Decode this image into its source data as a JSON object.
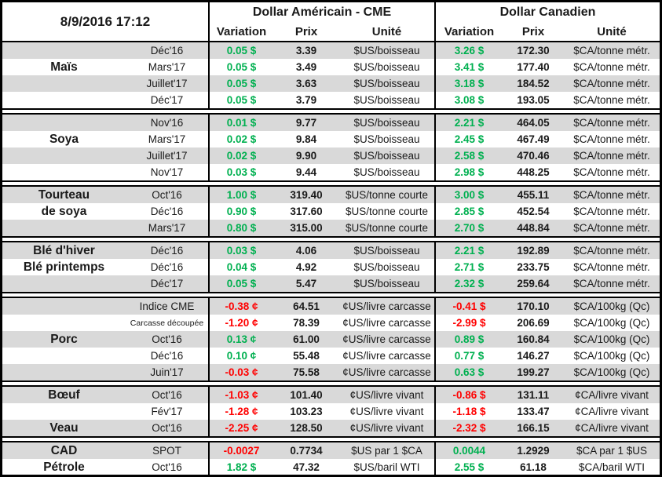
{
  "window": {
    "timestamp": "8/9/2016 17:12"
  },
  "columns": {
    "group_us": "Dollar Américain - CME",
    "group_ca": "Dollar Canadien",
    "variation": "Variation",
    "prix": "Prix",
    "unite": "Unité"
  },
  "colors": {
    "positive": "#00b050",
    "negative": "#ff0000",
    "stripe": "#d9d9d9",
    "border": "#000000"
  },
  "sections": [
    {
      "name": "mais",
      "labels": [
        {
          "text": "Maïs",
          "row": 1
        }
      ],
      "rows": [
        {
          "contract": "Déc'16",
          "us": {
            "var": "0.05 $",
            "dir": "pos",
            "prix": "3.39",
            "unit": "$US/boisseau"
          },
          "ca": {
            "var": "3.26 $",
            "dir": "pos",
            "prix": "172.30",
            "unit": "$CA/tonne métr."
          }
        },
        {
          "contract": "Mars'17",
          "us": {
            "var": "0.05 $",
            "dir": "pos",
            "prix": "3.49",
            "unit": "$US/boisseau"
          },
          "ca": {
            "var": "3.41 $",
            "dir": "pos",
            "prix": "177.40",
            "unit": "$CA/tonne métr."
          }
        },
        {
          "contract": "Juillet'17",
          "us": {
            "var": "0.05 $",
            "dir": "pos",
            "prix": "3.63",
            "unit": "$US/boisseau"
          },
          "ca": {
            "var": "3.18 $",
            "dir": "pos",
            "prix": "184.52",
            "unit": "$CA/tonne métr."
          }
        },
        {
          "contract": "Déc'17",
          "us": {
            "var": "0.05 $",
            "dir": "pos",
            "prix": "3.79",
            "unit": "$US/boisseau"
          },
          "ca": {
            "var": "3.08 $",
            "dir": "pos",
            "prix": "193.05",
            "unit": "$CA/tonne métr."
          }
        }
      ]
    },
    {
      "name": "soya",
      "labels": [
        {
          "text": "Soya",
          "row": 1
        }
      ],
      "rows": [
        {
          "contract": "Nov'16",
          "us": {
            "var": "0.01 $",
            "dir": "pos",
            "prix": "9.77",
            "unit": "$US/boisseau"
          },
          "ca": {
            "var": "2.21 $",
            "dir": "pos",
            "prix": "464.05",
            "unit": "$CA/tonne métr."
          }
        },
        {
          "contract": "Mars'17",
          "us": {
            "var": "0.02 $",
            "dir": "pos",
            "prix": "9.84",
            "unit": "$US/boisseau"
          },
          "ca": {
            "var": "2.45 $",
            "dir": "pos",
            "prix": "467.49",
            "unit": "$CA/tonne métr."
          }
        },
        {
          "contract": "Juillet'17",
          "us": {
            "var": "0.02 $",
            "dir": "pos",
            "prix": "9.90",
            "unit": "$US/boisseau"
          },
          "ca": {
            "var": "2.58 $",
            "dir": "pos",
            "prix": "470.46",
            "unit": "$CA/tonne métr."
          }
        },
        {
          "contract": "Nov'17",
          "us": {
            "var": "0.03 $",
            "dir": "pos",
            "prix": "9.44",
            "unit": "$US/boisseau"
          },
          "ca": {
            "var": "2.98 $",
            "dir": "pos",
            "prix": "448.25",
            "unit": "$CA/tonne métr."
          }
        }
      ]
    },
    {
      "name": "tourteau-de-soya",
      "labels": [
        {
          "text": "Tourteau",
          "row": 0
        },
        {
          "text": "de soya",
          "row": 1
        }
      ],
      "rows": [
        {
          "contract": "Oct'16",
          "us": {
            "var": "1.00 $",
            "dir": "pos",
            "prix": "319.40",
            "unit": "$US/tonne courte"
          },
          "ca": {
            "var": "3.00 $",
            "dir": "pos",
            "prix": "455.11",
            "unit": "$CA/tonne métr."
          }
        },
        {
          "contract": "Déc'16",
          "us": {
            "var": "0.90 $",
            "dir": "pos",
            "prix": "317.60",
            "unit": "$US/tonne courte"
          },
          "ca": {
            "var": "2.85 $",
            "dir": "pos",
            "prix": "452.54",
            "unit": "$CA/tonne métr."
          }
        },
        {
          "contract": "Mars'17",
          "us": {
            "var": "0.80 $",
            "dir": "pos",
            "prix": "315.00",
            "unit": "$US/tonne courte"
          },
          "ca": {
            "var": "2.70 $",
            "dir": "pos",
            "prix": "448.84",
            "unit": "$CA/tonne métr."
          }
        }
      ]
    },
    {
      "name": "ble",
      "labels": [
        {
          "text": "Blé d'hiver",
          "row": 0
        },
        {
          "text": "Blé printemps",
          "row": 1
        }
      ],
      "rows": [
        {
          "contract": "Déc'16",
          "us": {
            "var": "0.03 $",
            "dir": "pos",
            "prix": "4.06",
            "unit": "$US/boisseau"
          },
          "ca": {
            "var": "2.21 $",
            "dir": "pos",
            "prix": "192.89",
            "unit": "$CA/tonne métr."
          }
        },
        {
          "contract": "Déc'16",
          "us": {
            "var": "0.04 $",
            "dir": "pos",
            "prix": "4.92",
            "unit": "$US/boisseau"
          },
          "ca": {
            "var": "2.71 $",
            "dir": "pos",
            "prix": "233.75",
            "unit": "$CA/tonne métr."
          }
        },
        {
          "contract": "Déc'17",
          "us": {
            "var": "0.05 $",
            "dir": "pos",
            "prix": "5.47",
            "unit": "$US/boisseau"
          },
          "ca": {
            "var": "2.32 $",
            "dir": "pos",
            "prix": "259.64",
            "unit": "$CA/tonne métr."
          }
        }
      ]
    },
    {
      "name": "porc",
      "labels": [
        {
          "text": "Porc",
          "row": 2
        }
      ],
      "rows": [
        {
          "contract": "Indice CME",
          "us": {
            "var": "-0.38 ¢",
            "dir": "neg",
            "prix": "64.51",
            "unit": "¢US/livre carcasse"
          },
          "ca": {
            "var": "-0.41 $",
            "dir": "neg",
            "prix": "170.10",
            "unit": "$CA/100kg (Qc)"
          }
        },
        {
          "contract": "Carcasse découpée",
          "small": true,
          "us": {
            "var": "-1.20 ¢",
            "dir": "neg",
            "prix": "78.39",
            "unit": "¢US/livre carcasse"
          },
          "ca": {
            "var": "-2.99 $",
            "dir": "neg",
            "prix": "206.69",
            "unit": "$CA/100kg (Qc)"
          }
        },
        {
          "contract": "Oct'16",
          "us": {
            "var": "0.13 ¢",
            "dir": "pos",
            "prix": "61.00",
            "unit": "¢US/livre carcasse"
          },
          "ca": {
            "var": "0.89 $",
            "dir": "pos",
            "prix": "160.84",
            "unit": "$CA/100kg (Qc)"
          }
        },
        {
          "contract": "Déc'16",
          "us": {
            "var": "0.10 ¢",
            "dir": "pos",
            "prix": "55.48",
            "unit": "¢US/livre carcasse"
          },
          "ca": {
            "var": "0.77 $",
            "dir": "pos",
            "prix": "146.27",
            "unit": "$CA/100kg (Qc)"
          }
        },
        {
          "contract": "Juin'17",
          "us": {
            "var": "-0.03 ¢",
            "dir": "neg",
            "prix": "75.58",
            "unit": "¢US/livre carcasse"
          },
          "ca": {
            "var": "0.63 $",
            "dir": "pos",
            "prix": "199.27",
            "unit": "$CA/100kg (Qc)"
          }
        }
      ]
    },
    {
      "name": "boeuf-veau",
      "labels": [
        {
          "text": "Bœuf",
          "row": 0
        },
        {
          "text": "Veau",
          "row": 2
        }
      ],
      "rows": [
        {
          "contract": "Oct'16",
          "us": {
            "var": "-1.03 ¢",
            "dir": "neg",
            "prix": "101.40",
            "unit": "¢US/livre vivant"
          },
          "ca": {
            "var": "-0.86 $",
            "dir": "neg",
            "prix": "131.11",
            "unit": "¢CA/livre vivant"
          }
        },
        {
          "contract": "Fév'17",
          "us": {
            "var": "-1.28 ¢",
            "dir": "neg",
            "prix": "103.23",
            "unit": "¢US/livre vivant"
          },
          "ca": {
            "var": "-1.18 $",
            "dir": "neg",
            "prix": "133.47",
            "unit": "¢CA/livre vivant"
          }
        },
        {
          "contract": "Oct'16",
          "us": {
            "var": "-2.25 ¢",
            "dir": "neg",
            "prix": "128.50",
            "unit": "¢US/livre vivant"
          },
          "ca": {
            "var": "-2.32 $",
            "dir": "neg",
            "prix": "166.15",
            "unit": "¢CA/livre vivant"
          }
        }
      ]
    },
    {
      "name": "cad-petrole",
      "labels": [
        {
          "text": "CAD",
          "row": 0
        },
        {
          "text": "Pétrole",
          "row": 1
        }
      ],
      "rows": [
        {
          "contract": "SPOT",
          "us": {
            "var": "-0.0027",
            "dir": "neg",
            "prix": "0.7734",
            "unit": "$US par 1 $CA"
          },
          "ca": {
            "var": "0.0044",
            "dir": "pos",
            "prix": "1.2929",
            "unit": "$CA par 1 $US"
          }
        },
        {
          "contract": "Oct'16",
          "us": {
            "var": "1.82 $",
            "dir": "pos",
            "prix": "47.32",
            "unit": "$US/baril WTI"
          },
          "ca": {
            "var": "2.55 $",
            "dir": "pos",
            "prix": "61.18",
            "unit": "$CA/baril WTI"
          }
        }
      ]
    }
  ]
}
